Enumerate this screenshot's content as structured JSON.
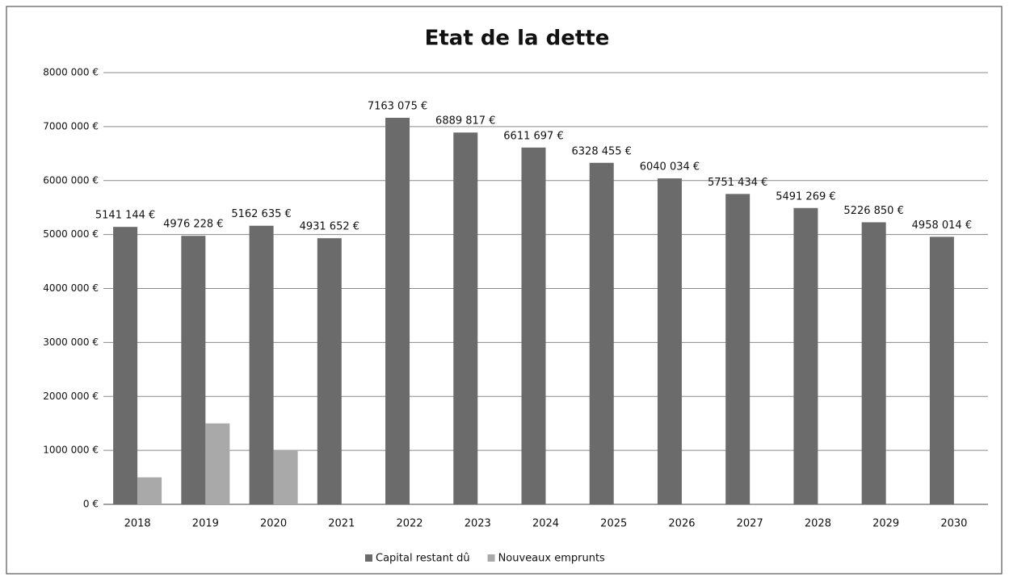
{
  "chart_data": {
    "type": "bar",
    "title": "Etat de la dette",
    "categories": [
      "2018",
      "2019",
      "2020",
      "2021",
      "2022",
      "2023",
      "2024",
      "2025",
      "2026",
      "2027",
      "2028",
      "2029",
      "2030"
    ],
    "series": [
      {
        "name": "Capital restant dû",
        "color": "#6b6b6b",
        "values": [
          5141144,
          4976228,
          5162635,
          4931652,
          7163075,
          6889817,
          6611697,
          6328455,
          6040034,
          5751434,
          5491269,
          5226850,
          4958014
        ],
        "value_labels": [
          "5141 144 €",
          "4976 228 €",
          "5162 635 €",
          "4931 652 €",
          "7163 075 €",
          "6889 817 €",
          "6611 697 €",
          "6328 455 €",
          "6040 034 €",
          "5751 434 €",
          "5491 269 €",
          "5226 850 €",
          "4958 014 €"
        ]
      },
      {
        "name": "Nouveaux emprunts",
        "color": "#a9a9a9",
        "values": [
          500000,
          1500000,
          1000000,
          null,
          null,
          null,
          null,
          null,
          null,
          null,
          null,
          null,
          null
        ]
      }
    ],
    "ylim": [
      0,
      8000000
    ],
    "yticks": [
      {
        "value": 0,
        "label": "0 €"
      },
      {
        "value": 1000000,
        "label": "1000 000 €"
      },
      {
        "value": 2000000,
        "label": "2000 000 €"
      },
      {
        "value": 3000000,
        "label": "3000 000 €"
      },
      {
        "value": 4000000,
        "label": "4000 000 €"
      },
      {
        "value": 5000000,
        "label": "5000 000 €"
      },
      {
        "value": 6000000,
        "label": "6000 000 €"
      },
      {
        "value": 7000000,
        "label": "7000 000 €"
      },
      {
        "value": 8000000,
        "label": "8000 000 €"
      }
    ],
    "grid": true,
    "legend": "bottom"
  }
}
